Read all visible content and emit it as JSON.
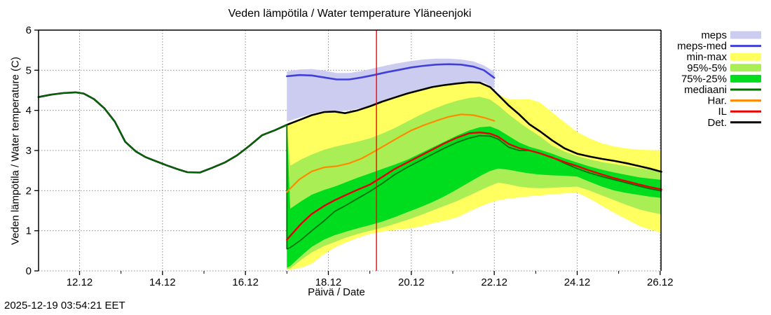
{
  "title": "Veden lämpötila / Water temperature Yläneenjoki",
  "timestamp": "2025-12-19 03:54:21 EET",
  "colors": {
    "meps_band": "#ccccf0",
    "meps_med_line": "#4040d8",
    "minmax_band": "#ffff60",
    "p95_band": "#aaee55",
    "p75_band": "#00dc1e",
    "mediaani_line": "#007000",
    "har_line": "#ff8a00",
    "il_line": "#e60000",
    "det_line": "#000000",
    "now_line": "#ff0000",
    "grid": "#909090",
    "border": "#000000"
  },
  "chart_data": {
    "type": "line",
    "title": "Veden lämpötila / Water temperature Yläneenjoki",
    "xlabel": "Päivä / Date",
    "ylabel": "Veden lämpötila / Water temperature (C)",
    "grid": true,
    "legend_position": "outside-right",
    "ylim": [
      0,
      6
    ],
    "xlim": [
      11.01,
      26.03
    ],
    "x_ticks": [
      {
        "v": 12,
        "label": "12.12"
      },
      {
        "v": 14,
        "label": "14.12"
      },
      {
        "v": 16,
        "label": "16.12"
      },
      {
        "v": 18,
        "label": "18.12"
      },
      {
        "v": 20,
        "label": "20.12"
      },
      {
        "v": 22,
        "label": "22.12"
      },
      {
        "v": 24,
        "label": "24.12"
      },
      {
        "v": 26,
        "label": "26.12"
      }
    ],
    "x_minor_ticks": [
      13,
      15,
      17,
      19,
      21,
      23,
      25
    ],
    "y_ticks": [
      {
        "v": 0,
        "label": "0"
      },
      {
        "v": 1,
        "label": "1"
      },
      {
        "v": 2,
        "label": "2"
      },
      {
        "v": 3,
        "label": "3"
      },
      {
        "v": 4,
        "label": "4"
      },
      {
        "v": 5,
        "label": "5"
      },
      {
        "v": 6,
        "label": "6"
      }
    ],
    "now_line_x": 19.16,
    "forecast_start_x": 17.0,
    "legend": [
      {
        "label": "meps",
        "type": "band",
        "color_key": "meps_band"
      },
      {
        "label": "meps-med",
        "type": "line",
        "color_key": "meps_med_line"
      },
      {
        "label": "min-max",
        "type": "band",
        "color_key": "minmax_band"
      },
      {
        "label": "95%-5%",
        "type": "band",
        "color_key": "p95_band"
      },
      {
        "label": "75%-25%",
        "type": "band",
        "color_key": "p75_band"
      },
      {
        "label": "mediaani",
        "type": "line",
        "color_key": "mediaani_line"
      },
      {
        "label": "Har.",
        "type": "line",
        "color_key": "har_line"
      },
      {
        "label": "IL",
        "type": "line",
        "color_key": "il_line"
      },
      {
        "label": "Det.",
        "type": "line",
        "color_key": "det_line"
      }
    ],
    "bands": [
      {
        "name": "meps",
        "color_key": "meps_band",
        "x": [
          17.0,
          17.3,
          17.6,
          17.9,
          18.2,
          18.5,
          18.8,
          19.1,
          19.4,
          19.7,
          20.0,
          20.3,
          20.6,
          20.9,
          21.2,
          21.5,
          21.75,
          22.0
        ],
        "upper": [
          4.97,
          5.02,
          5.03,
          4.99,
          4.93,
          4.93,
          4.98,
          5.05,
          5.12,
          5.18,
          5.23,
          5.27,
          5.29,
          5.29,
          5.27,
          5.22,
          5.12,
          4.96
        ],
        "lower": [
          3.72,
          3.82,
          3.92,
          3.99,
          3.97,
          4.0,
          4.06,
          4.14,
          4.24,
          4.34,
          4.45,
          4.53,
          4.6,
          4.65,
          4.69,
          4.72,
          4.7,
          4.55
        ]
      },
      {
        "name": "min-max",
        "color_key": "minmax_band",
        "x": [
          17.0,
          17.08,
          17.35,
          17.6,
          17.9,
          18.15,
          18.4,
          18.7,
          19.0,
          19.3,
          19.6,
          19.9,
          20.2,
          20.5,
          20.8,
          21.1,
          21.4,
          21.65,
          21.9,
          22.1,
          22.35,
          22.6,
          22.85,
          23.1,
          23.4,
          23.7,
          24.0,
          24.3,
          24.6,
          24.9,
          25.2,
          25.5,
          25.75,
          26.03
        ],
        "upper": [
          3.64,
          3.67,
          3.78,
          3.88,
          3.96,
          3.97,
          3.93,
          4.0,
          4.1,
          4.22,
          4.32,
          4.42,
          4.5,
          4.58,
          4.63,
          4.67,
          4.7,
          4.69,
          4.58,
          4.4,
          4.28,
          4.27,
          4.28,
          4.2,
          3.95,
          3.7,
          3.46,
          3.3,
          3.18,
          3.1,
          3.05,
          3.02,
          3.01,
          3.0
        ],
        "lower": [
          0.02,
          0.03,
          0.08,
          0.18,
          0.42,
          0.58,
          0.7,
          0.82,
          0.92,
          0.98,
          1.02,
          1.05,
          1.1,
          1.18,
          1.25,
          1.33,
          1.48,
          1.6,
          1.7,
          1.76,
          1.8,
          1.83,
          1.86,
          1.88,
          1.91,
          1.93,
          1.95,
          1.8,
          1.62,
          1.44,
          1.28,
          1.12,
          1.03,
          0.95
        ]
      },
      {
        "name": "95%-5%",
        "color_key": "p95_band",
        "x": [
          17.0,
          17.08,
          17.35,
          17.6,
          17.9,
          18.15,
          18.4,
          18.7,
          19.0,
          19.3,
          19.6,
          19.9,
          20.2,
          20.5,
          20.8,
          21.1,
          21.4,
          21.65,
          21.9,
          22.1,
          22.35,
          22.6,
          22.85,
          23.1,
          23.4,
          23.7,
          24.0,
          24.3,
          24.6,
          24.9,
          25.2,
          25.5,
          25.75,
          26.03
        ],
        "upper": [
          3.64,
          2.62,
          2.78,
          2.9,
          3.02,
          3.09,
          3.15,
          3.22,
          3.3,
          3.42,
          3.56,
          3.72,
          3.88,
          4.02,
          4.14,
          4.24,
          4.31,
          4.34,
          4.27,
          4.12,
          3.9,
          3.7,
          3.52,
          3.35,
          3.12,
          2.97,
          2.86,
          2.78,
          2.71,
          2.66,
          2.61,
          2.56,
          2.52,
          2.48
        ],
        "lower": [
          0.04,
          0.06,
          0.28,
          0.46,
          0.62,
          0.72,
          0.82,
          0.92,
          1.0,
          1.08,
          1.17,
          1.27,
          1.38,
          1.5,
          1.62,
          1.74,
          1.88,
          2.0,
          2.12,
          2.2,
          2.16,
          2.1,
          2.07,
          2.06,
          2.07,
          2.09,
          2.1,
          2.0,
          1.88,
          1.76,
          1.64,
          1.53,
          1.47,
          1.41
        ]
      },
      {
        "name": "75%-25%",
        "color_key": "p75_band",
        "x": [
          17.0,
          17.08,
          17.35,
          17.6,
          17.9,
          18.15,
          18.4,
          18.7,
          19.0,
          19.3,
          19.6,
          19.9,
          20.2,
          20.5,
          20.8,
          21.1,
          21.4,
          21.65,
          21.9,
          22.1,
          22.35,
          22.6,
          22.85,
          23.1,
          23.4,
          23.7,
          24.0,
          24.3,
          24.6,
          24.9,
          25.2,
          25.5,
          25.75,
          26.03
        ],
        "upper": [
          3.64,
          1.55,
          1.74,
          1.9,
          2.02,
          2.1,
          2.2,
          2.32,
          2.43,
          2.54,
          2.65,
          2.77,
          2.92,
          3.07,
          3.22,
          3.37,
          3.5,
          3.58,
          3.6,
          3.52,
          3.36,
          3.2,
          3.09,
          3.02,
          2.92,
          2.8,
          2.7,
          2.6,
          2.52,
          2.45,
          2.39,
          2.33,
          2.3,
          2.27
        ],
        "lower": [
          0.08,
          0.12,
          0.38,
          0.6,
          0.78,
          0.89,
          0.97,
          1.06,
          1.14,
          1.23,
          1.34,
          1.46,
          1.58,
          1.71,
          1.86,
          2.03,
          2.21,
          2.36,
          2.49,
          2.55,
          2.52,
          2.47,
          2.43,
          2.4,
          2.38,
          2.37,
          2.35,
          2.22,
          2.1,
          2.0,
          1.94,
          1.89,
          1.85,
          1.82
        ]
      }
    ],
    "series": [
      {
        "name": "Det.",
        "color_key": "det_line",
        "width": 2.6,
        "x": [
          11.01,
          11.3,
          11.6,
          11.9,
          12.1,
          12.35,
          12.6,
          12.85,
          13.1,
          13.35,
          13.6,
          13.85,
          14.1,
          14.35,
          14.6,
          14.9,
          15.2,
          15.5,
          15.8,
          16.1,
          16.4,
          16.7,
          17.0,
          17.35,
          17.6,
          17.9,
          18.15,
          18.4,
          18.7,
          19.0,
          19.3,
          19.6,
          19.9,
          20.2,
          20.5,
          20.8,
          21.1,
          21.4,
          21.65,
          21.9,
          22.1,
          22.35,
          22.6,
          22.85,
          23.1,
          23.4,
          23.7,
          24.0,
          24.3,
          24.6,
          24.9,
          25.2,
          25.5,
          25.75,
          26.03
        ],
        "y": [
          4.33,
          4.39,
          4.43,
          4.45,
          4.42,
          4.28,
          4.05,
          3.72,
          3.22,
          2.98,
          2.83,
          2.73,
          2.63,
          2.54,
          2.46,
          2.45,
          2.57,
          2.7,
          2.88,
          3.12,
          3.38,
          3.5,
          3.64,
          3.78,
          3.88,
          3.96,
          3.97,
          3.93,
          4.0,
          4.1,
          4.22,
          4.32,
          4.42,
          4.5,
          4.58,
          4.63,
          4.67,
          4.7,
          4.69,
          4.58,
          4.38,
          4.12,
          3.9,
          3.65,
          3.48,
          3.25,
          3.05,
          2.92,
          2.85,
          2.79,
          2.74,
          2.68,
          2.61,
          2.55,
          2.47
        ]
      },
      {
        "name": "mediaani",
        "color_key": "mediaani_line",
        "width": 1.8,
        "x": [
          11.01,
          11.3,
          11.6,
          11.9,
          12.1,
          12.35,
          12.6,
          12.85,
          13.1,
          13.35,
          13.6,
          13.85,
          14.1,
          14.35,
          14.6,
          14.9,
          15.2,
          15.5,
          15.8,
          16.1,
          16.4,
          16.7,
          17.0,
          17.0,
          17.08,
          17.35,
          17.6,
          17.9,
          18.15,
          18.4,
          18.7,
          19.0,
          19.3,
          19.6,
          19.9,
          20.2,
          20.5,
          20.8,
          21.1,
          21.4,
          21.65,
          21.9,
          22.1,
          22.35,
          22.6,
          22.85,
          23.1,
          23.4,
          23.7,
          24.0,
          24.3,
          24.6,
          24.9,
          25.2,
          25.5,
          25.75,
          26.03
        ],
        "y": [
          4.33,
          4.39,
          4.43,
          4.45,
          4.42,
          4.28,
          4.05,
          3.72,
          3.22,
          2.98,
          2.83,
          2.73,
          2.63,
          2.54,
          2.46,
          2.45,
          2.57,
          2.7,
          2.88,
          3.12,
          3.38,
          3.5,
          3.64,
          0.55,
          0.58,
          0.78,
          1.0,
          1.25,
          1.48,
          1.62,
          1.8,
          1.98,
          2.18,
          2.4,
          2.58,
          2.74,
          2.9,
          3.06,
          3.2,
          3.31,
          3.37,
          3.36,
          3.28,
          3.08,
          3.0,
          3.0,
          2.93,
          2.83,
          2.68,
          2.55,
          2.44,
          2.35,
          2.27,
          2.19,
          2.11,
          2.05,
          1.99
        ]
      },
      {
        "name": "Har.",
        "color_key": "har_line",
        "width": 2.2,
        "x": [
          17.0,
          17.3,
          17.6,
          17.9,
          18.2,
          18.5,
          18.8,
          19.1,
          19.4,
          19.7,
          20.0,
          20.3,
          20.6,
          20.9,
          21.2,
          21.5,
          21.75,
          22.0
        ],
        "y": [
          1.97,
          2.28,
          2.48,
          2.58,
          2.61,
          2.68,
          2.8,
          2.97,
          3.15,
          3.33,
          3.5,
          3.63,
          3.74,
          3.84,
          3.9,
          3.88,
          3.82,
          3.74
        ]
      },
      {
        "name": "IL",
        "color_key": "il_line",
        "width": 2.4,
        "x": [
          17.0,
          17.35,
          17.6,
          17.9,
          18.15,
          18.4,
          18.7,
          19.0,
          19.3,
          19.6,
          19.9,
          20.2,
          20.5,
          20.8,
          21.1,
          21.4,
          21.65,
          21.9,
          22.1,
          22.35,
          22.6,
          22.85,
          23.1,
          23.4,
          23.7,
          24.0,
          24.3,
          24.6,
          24.9,
          25.2,
          25.5,
          25.75,
          26.03
        ],
        "y": [
          0.78,
          1.18,
          1.42,
          1.62,
          1.76,
          1.88,
          2.02,
          2.15,
          2.34,
          2.54,
          2.7,
          2.86,
          3.02,
          3.18,
          3.32,
          3.43,
          3.45,
          3.42,
          3.34,
          3.16,
          3.06,
          3.0,
          2.93,
          2.82,
          2.71,
          2.61,
          2.5,
          2.4,
          2.31,
          2.23,
          2.15,
          2.09,
          2.03
        ]
      },
      {
        "name": "meps-med",
        "color_key": "meps_med_line",
        "width": 2.6,
        "x": [
          17.0,
          17.3,
          17.6,
          17.9,
          18.2,
          18.5,
          18.8,
          19.1,
          19.4,
          19.7,
          20.0,
          20.3,
          20.6,
          20.9,
          21.2,
          21.5,
          21.75,
          22.0
        ],
        "y": [
          4.85,
          4.88,
          4.87,
          4.82,
          4.77,
          4.77,
          4.82,
          4.88,
          4.95,
          5.01,
          5.07,
          5.11,
          5.14,
          5.15,
          5.14,
          5.09,
          5.0,
          4.81
        ]
      }
    ]
  }
}
